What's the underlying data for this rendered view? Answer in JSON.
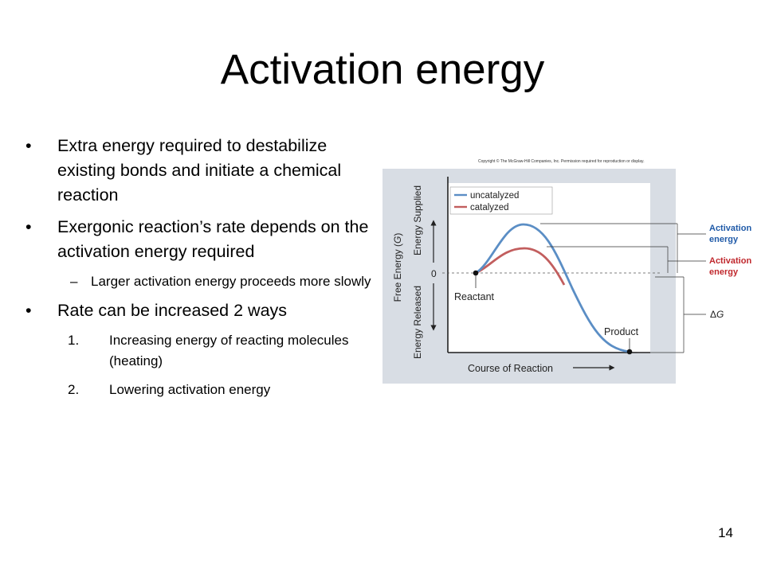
{
  "slide": {
    "title": "Activation energy",
    "page_number": "14"
  },
  "bullets": [
    {
      "marker": "•",
      "text": "Extra energy required to destabilize existing bonds and initiate a chemical reaction"
    },
    {
      "marker": "•",
      "text": "Exergonic reaction’s rate depends on the activation energy required"
    },
    {
      "marker": "–",
      "text": "Larger activation energy proceeds more slowly"
    },
    {
      "marker": "•",
      "text": "Rate can be increased 2 ways"
    },
    {
      "marker": "1.",
      "text": "Increasing energy of reacting molecules (heating)"
    },
    {
      "marker": "2.",
      "text": "Lowering activation energy"
    }
  ],
  "figure": {
    "copyright": "Copyright © The McGraw-Hill Companies, Inc. Permission required for reproduction or display.",
    "legend": {
      "uncatalyzed": "uncatalyzed",
      "catalyzed": "catalyzed"
    },
    "y_axis": {
      "free_energy": "Free Energy (",
      "free_energy_var": "G",
      "free_energy_close": ")",
      "supplied": "Energy Supplied",
      "released": "Energy Released",
      "zero": "0"
    },
    "x_axis_label": "Course of Reaction",
    "reactant": "Reactant",
    "product": "Product",
    "activation_uncatalyzed": {
      "line1": "Activation",
      "line2": "energy"
    },
    "activation_catalyzed": {
      "line1": "Activation",
      "line2": "energy"
    },
    "delta_g": {
      "delta": "Δ",
      "g": "G"
    },
    "colors": {
      "uncatalyzed": "#5b8ec5",
      "catalyzed": "#c25e5e",
      "panel": "#d8dde4",
      "plot": "#ffffff",
      "blue_label": "#1f5aa8",
      "red_label": "#c0282d"
    }
  }
}
